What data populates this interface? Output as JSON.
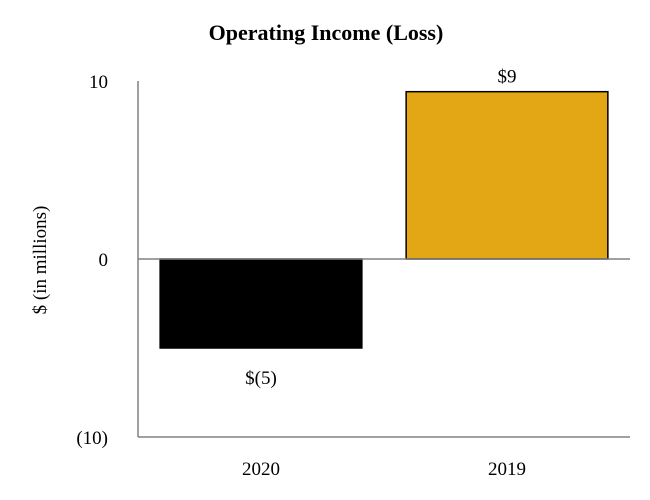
{
  "chart_data": {
    "type": "bar",
    "title": "Operating Income (Loss)",
    "ylabel": "$ (in millions)",
    "xlabel": "",
    "categories": [
      "2020",
      "2019"
    ],
    "values": [
      -5,
      9.4
    ],
    "data_labels": [
      "$(5)",
      "$9"
    ],
    "colors": [
      "#000000",
      "#E3A614"
    ],
    "ylim": [
      -10,
      10
    ],
    "yticks": [
      10,
      0,
      -10
    ],
    "ytick_labels": [
      "10",
      "0",
      "(10)"
    ],
    "grid": false,
    "legend": "none"
  }
}
